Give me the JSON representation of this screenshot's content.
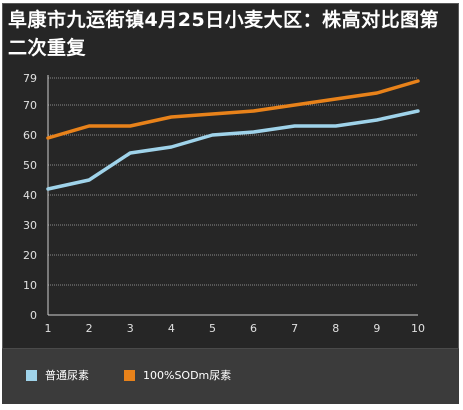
{
  "chart_data": {
    "type": "line",
    "title": "阜康市九运街镇4月25日小麦大区：株高对比图第二次重复",
    "xlabel": "",
    "ylabel": "",
    "categories": [
      "1",
      "2",
      "3",
      "4",
      "5",
      "6",
      "7",
      "8",
      "9",
      "10"
    ],
    "y_ticks": [
      0,
      10,
      20,
      30,
      40,
      50,
      60,
      70,
      79
    ],
    "ylim": [
      0,
      79
    ],
    "grid": "horizontal dashed",
    "legend_position": "bottom",
    "series": [
      {
        "name": "普通尿素",
        "color": "#9fd3ea",
        "values": [
          42,
          45,
          54,
          56,
          60,
          61,
          63,
          63,
          65,
          68
        ]
      },
      {
        "name": "100%SODm尿素",
        "color": "#e8821a",
        "values": [
          59,
          63,
          63,
          66,
          67,
          68,
          70,
          72,
          74,
          78
        ]
      }
    ]
  }
}
